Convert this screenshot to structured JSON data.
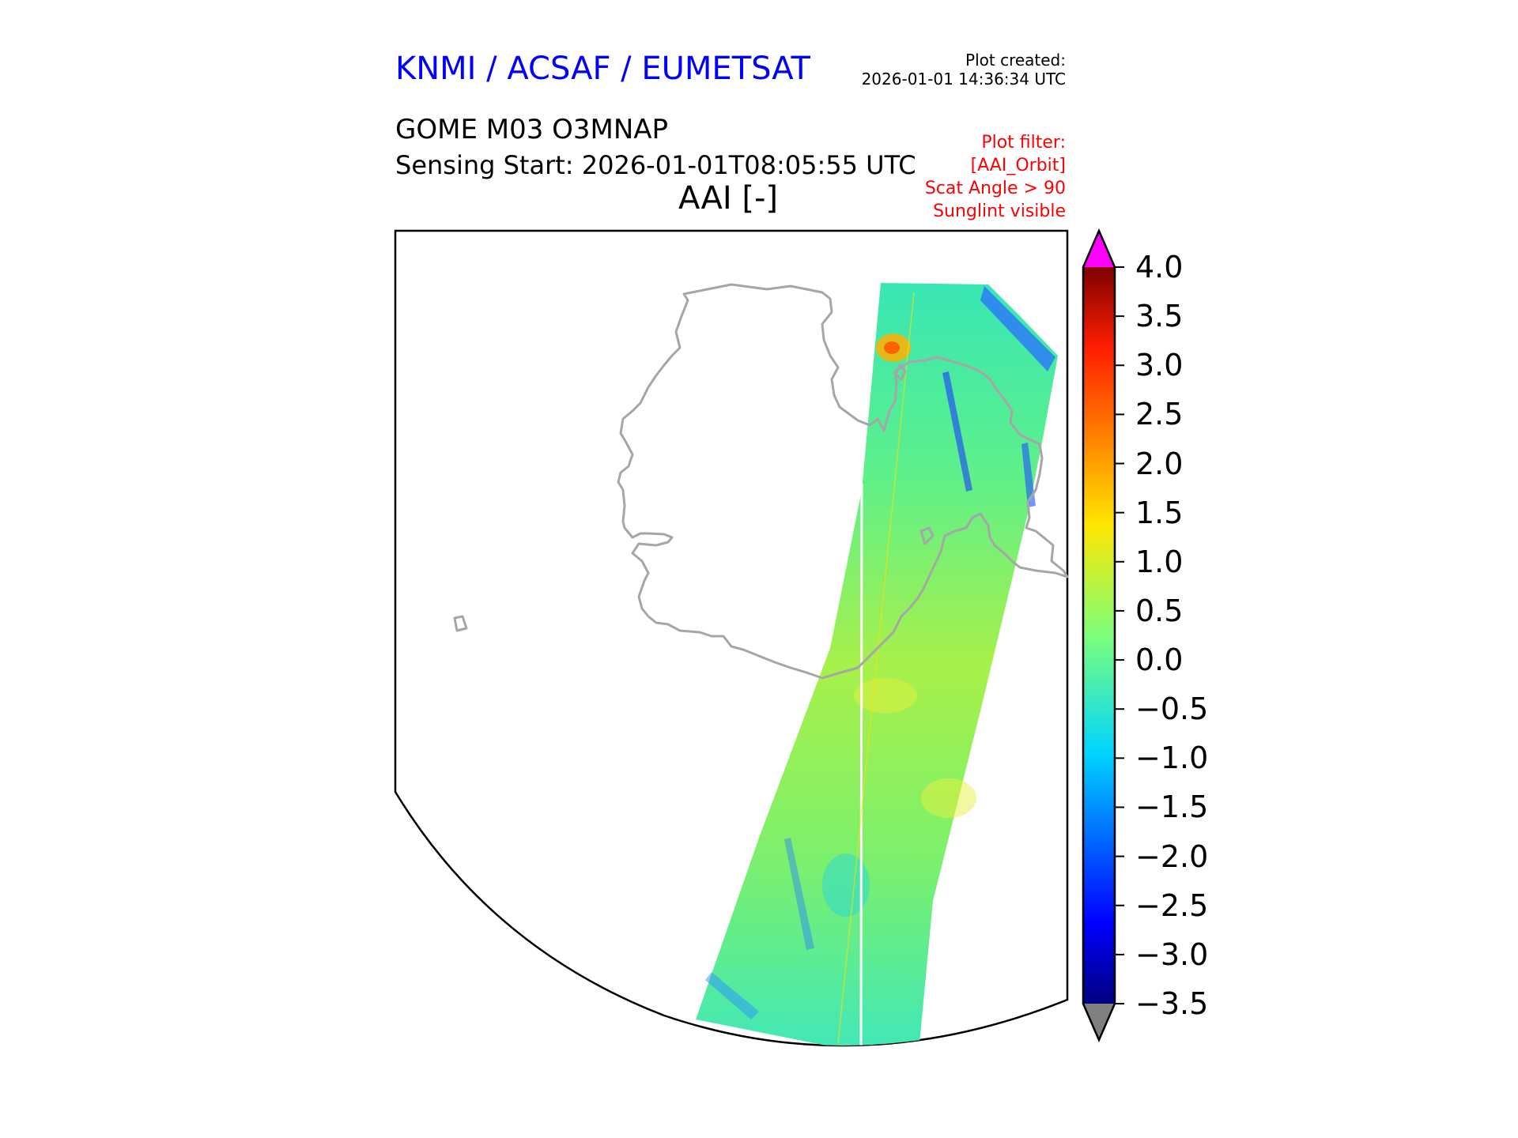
{
  "header": {
    "agency": "KNMI / ACSAF / EUMETSAT",
    "plot_created_label": "Plot created:",
    "plot_created_time": "2026-01-01 14:36:34 UTC",
    "product": "GOME M03 O3MNAP",
    "sensing_start": "Sensing Start: 2026-01-01T08:05:55 UTC",
    "variable": "AAI [-]"
  },
  "filter": {
    "lines": [
      "Plot filter:",
      "[AAI_Orbit]",
      "Scat Angle > 90",
      "Sunglint visible"
    ]
  },
  "colorbar": {
    "min": -3.5,
    "max": 4.0,
    "tick_labels": [
      "4.0",
      "3.5",
      "3.0",
      "2.5",
      "2.0",
      "1.5",
      "1.0",
      "0.5",
      "0.0",
      "−0.5",
      "−1.0",
      "−1.5",
      "−2.0",
      "−2.5",
      "−3.0",
      "−3.5"
    ],
    "over_color": "#ff00ff",
    "under_color": "#808080",
    "colormap": "jet"
  },
  "map": {
    "coastline_color": "#a6a6a6",
    "swath_dominant_values": "mostly -0.5 to 1.0 (cyan-green-yellow)"
  }
}
